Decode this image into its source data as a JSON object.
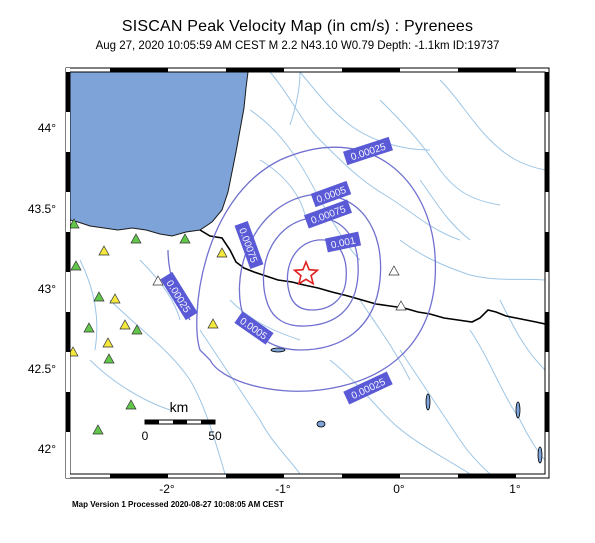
{
  "title": "SISCAN Peak Velocity Map (in cm/s) : Pyrenees",
  "subtitle": "Aug 27, 2020 10:05:59 AM CEST   M 2.2   N43.10 W0.79   Depth: -1.1km   ID:19737",
  "footer": "Map Version 1 Processed 2020-08-27 10:08:05 AM CEST",
  "axes": {
    "lat_ticks": [
      "44°",
      "43.5°",
      "43°",
      "42.5°",
      "42°"
    ],
    "lon_ticks": [
      "-2°",
      "-1°",
      "0°",
      "1°"
    ]
  },
  "contour_labels": [
    "0.00025",
    "0.0005",
    "0.00075",
    "0.001",
    "0.00075",
    "0.00025",
    "0.0005",
    "0.00025"
  ],
  "scale_bar": {
    "unit": "km",
    "start": "0",
    "end": "50"
  },
  "colors": {
    "sea": "#7da3d8",
    "land": "#ffffff",
    "contour": "#7070d0",
    "label_bg": "#5a5ad6",
    "rivers": "#9ec6e6",
    "border": "#000000",
    "station_green": "#62c64a",
    "station_yellow": "#f4e83c",
    "station_white": "#ffffff",
    "epicenter": "#e02020"
  },
  "epicenter": {
    "symbol": "star-icon",
    "lat": 43.1,
    "lon": -0.79
  }
}
